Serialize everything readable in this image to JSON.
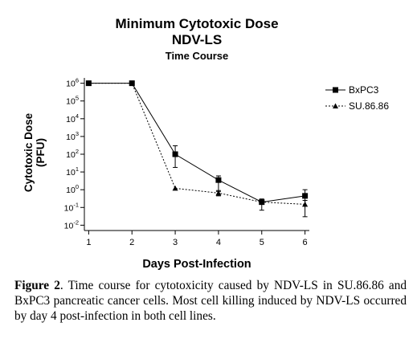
{
  "chart_data": {
    "type": "line",
    "title": "Minimum Cytotoxic Dose",
    "subtitle": "NDV-LS",
    "subtitle2": "Time Course",
    "xlabel": "Days Post-Infection",
    "ylabel_line1": "Cytotoxic Dose",
    "ylabel_line2": "(PFU)",
    "x": [
      1,
      2,
      3,
      4,
      5,
      6
    ],
    "xlim": [
      0.9,
      6.1
    ],
    "yscale": "log",
    "ylim_exp": [
      -2.3,
      6.3
    ],
    "y_ticks": [
      {
        "exp": 6,
        "label": "10",
        "sup": "6"
      },
      {
        "exp": 5,
        "label": "10",
        "sup": "5"
      },
      {
        "exp": 4,
        "label": "10",
        "sup": "4"
      },
      {
        "exp": 3,
        "label": "10",
        "sup": "3"
      },
      {
        "exp": 2,
        "label": "10",
        "sup": "2"
      },
      {
        "exp": 1,
        "label": "10",
        "sup": "1"
      },
      {
        "exp": 0,
        "label": "10",
        "sup": "0"
      },
      {
        "exp": -1,
        "label": "10",
        "sup": "-1"
      },
      {
        "exp": -2,
        "label": "10",
        "sup": "-2"
      }
    ],
    "x_tick_labels": [
      "1",
      "2",
      "3",
      "4",
      "5",
      "6"
    ],
    "legend_position": "right",
    "series": [
      {
        "name": "BxPC3",
        "marker": "square",
        "line": "solid",
        "values": [
          1000000,
          1000000,
          100,
          3.5,
          0.2,
          0.45
        ],
        "err_low": [
          null,
          null,
          18,
          0.8,
          0.07,
          0.12
        ],
        "err_high": [
          null,
          null,
          300,
          6,
          0.3,
          1.0
        ]
      },
      {
        "name": "SU.86.86",
        "marker": "triangle",
        "line": "dotted",
        "values": [
          1000000,
          1000000,
          1.2,
          0.65,
          0.2,
          0.15
        ],
        "err_low": [
          null,
          null,
          null,
          0.45,
          null,
          0.03
        ],
        "err_high": [
          null,
          null,
          null,
          0.9,
          null,
          0.25
        ]
      }
    ]
  },
  "caption": {
    "label": "Figure 2",
    "text": ". Time course for cytotoxicity caused by NDV-LS in SU.86.86 and BxPC3 pancreatic cancer cells. Most cell killing induced by NDV-LS occurred by day 4 post-infection in both cell lines."
  }
}
